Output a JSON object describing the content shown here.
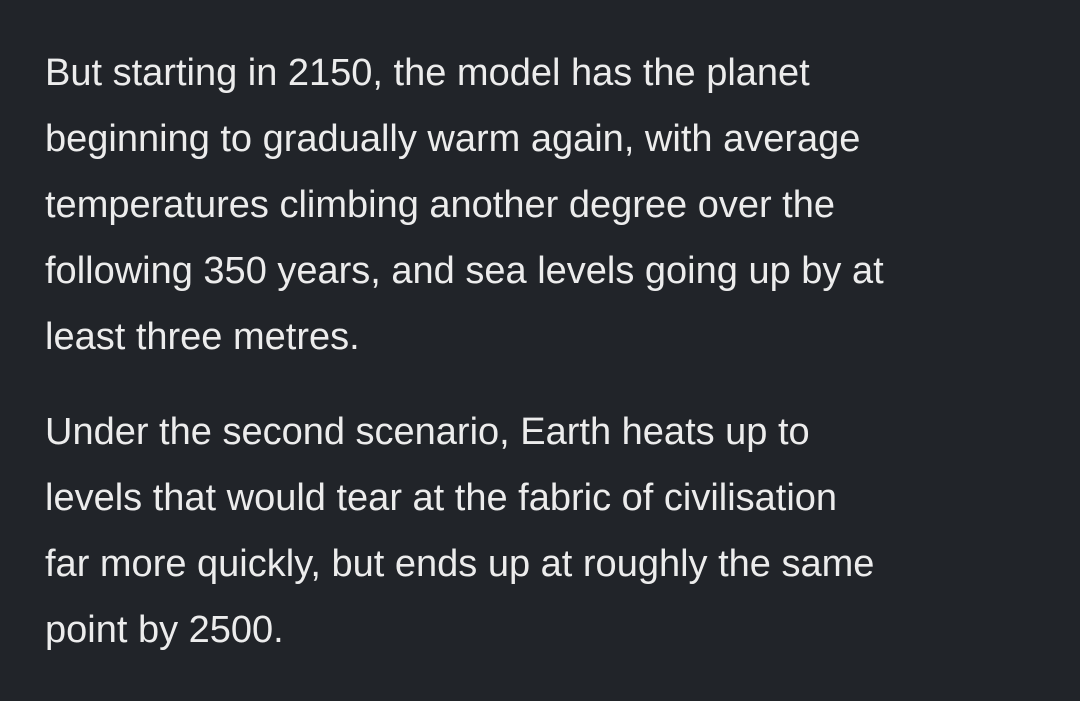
{
  "article": {
    "paragraphs": [
      {
        "lines": [
          "But starting in 2150, the model has the planet",
          "beginning to gradually warm again, with average",
          "temperatures climbing another degree over the",
          "following 350 years, and sea levels going up by at",
          "least three metres."
        ]
      },
      {
        "lines": [
          "Under the second scenario, Earth heats up to",
          "levels that would tear at the fabric of civilisation",
          "far more quickly, but ends up at roughly the same",
          "point by 2500."
        ]
      }
    ]
  },
  "colors": {
    "background": "#212429",
    "text": "#ececec"
  }
}
